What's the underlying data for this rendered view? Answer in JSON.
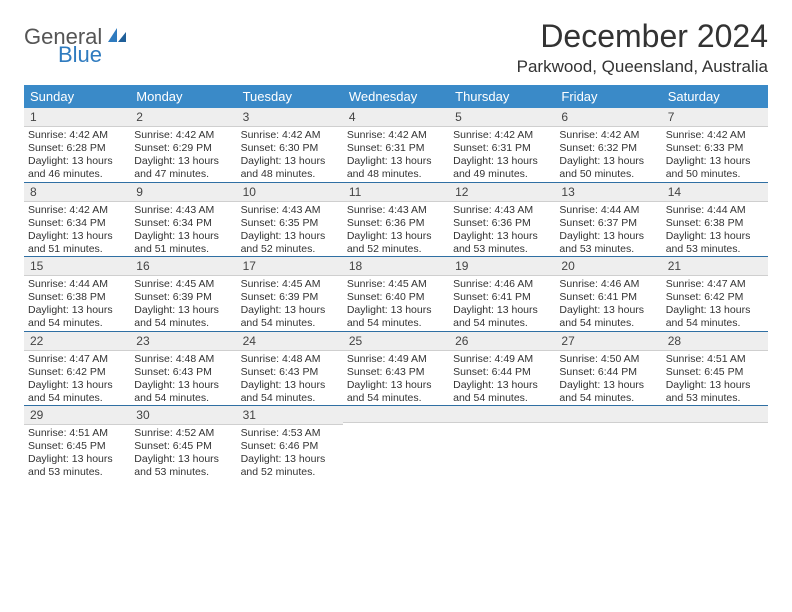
{
  "logo": {
    "part1": "General",
    "part2": "Blue",
    "icon_color": "#2f7bbf"
  },
  "title": "December 2024",
  "location": "Parkwood, Queensland, Australia",
  "colors": {
    "header_bg": "#3a8ac8",
    "header_text": "#ffffff",
    "daynum_bg": "#eeeeee",
    "rule": "#2f6fa3",
    "text": "#333333"
  },
  "fonts": {
    "title_size": 32,
    "location_size": 17,
    "header_size": 13,
    "cell_size": 10.5
  },
  "weekdays": [
    "Sunday",
    "Monday",
    "Tuesday",
    "Wednesday",
    "Thursday",
    "Friday",
    "Saturday"
  ],
  "weeks": [
    [
      {
        "n": "1",
        "sunrise": "4:42 AM",
        "sunset": "6:28 PM",
        "dl": "13 hours and 46 minutes."
      },
      {
        "n": "2",
        "sunrise": "4:42 AM",
        "sunset": "6:29 PM",
        "dl": "13 hours and 47 minutes."
      },
      {
        "n": "3",
        "sunrise": "4:42 AM",
        "sunset": "6:30 PM",
        "dl": "13 hours and 48 minutes."
      },
      {
        "n": "4",
        "sunrise": "4:42 AM",
        "sunset": "6:31 PM",
        "dl": "13 hours and 48 minutes."
      },
      {
        "n": "5",
        "sunrise": "4:42 AM",
        "sunset": "6:31 PM",
        "dl": "13 hours and 49 minutes."
      },
      {
        "n": "6",
        "sunrise": "4:42 AM",
        "sunset": "6:32 PM",
        "dl": "13 hours and 50 minutes."
      },
      {
        "n": "7",
        "sunrise": "4:42 AM",
        "sunset": "6:33 PM",
        "dl": "13 hours and 50 minutes."
      }
    ],
    [
      {
        "n": "8",
        "sunrise": "4:42 AM",
        "sunset": "6:34 PM",
        "dl": "13 hours and 51 minutes."
      },
      {
        "n": "9",
        "sunrise": "4:43 AM",
        "sunset": "6:34 PM",
        "dl": "13 hours and 51 minutes."
      },
      {
        "n": "10",
        "sunrise": "4:43 AM",
        "sunset": "6:35 PM",
        "dl": "13 hours and 52 minutes."
      },
      {
        "n": "11",
        "sunrise": "4:43 AM",
        "sunset": "6:36 PM",
        "dl": "13 hours and 52 minutes."
      },
      {
        "n": "12",
        "sunrise": "4:43 AM",
        "sunset": "6:36 PM",
        "dl": "13 hours and 53 minutes."
      },
      {
        "n": "13",
        "sunrise": "4:44 AM",
        "sunset": "6:37 PM",
        "dl": "13 hours and 53 minutes."
      },
      {
        "n": "14",
        "sunrise": "4:44 AM",
        "sunset": "6:38 PM",
        "dl": "13 hours and 53 minutes."
      }
    ],
    [
      {
        "n": "15",
        "sunrise": "4:44 AM",
        "sunset": "6:38 PM",
        "dl": "13 hours and 54 minutes."
      },
      {
        "n": "16",
        "sunrise": "4:45 AM",
        "sunset": "6:39 PM",
        "dl": "13 hours and 54 minutes."
      },
      {
        "n": "17",
        "sunrise": "4:45 AM",
        "sunset": "6:39 PM",
        "dl": "13 hours and 54 minutes."
      },
      {
        "n": "18",
        "sunrise": "4:45 AM",
        "sunset": "6:40 PM",
        "dl": "13 hours and 54 minutes."
      },
      {
        "n": "19",
        "sunrise": "4:46 AM",
        "sunset": "6:41 PM",
        "dl": "13 hours and 54 minutes."
      },
      {
        "n": "20",
        "sunrise": "4:46 AM",
        "sunset": "6:41 PM",
        "dl": "13 hours and 54 minutes."
      },
      {
        "n": "21",
        "sunrise": "4:47 AM",
        "sunset": "6:42 PM",
        "dl": "13 hours and 54 minutes."
      }
    ],
    [
      {
        "n": "22",
        "sunrise": "4:47 AM",
        "sunset": "6:42 PM",
        "dl": "13 hours and 54 minutes."
      },
      {
        "n": "23",
        "sunrise": "4:48 AM",
        "sunset": "6:43 PM",
        "dl": "13 hours and 54 minutes."
      },
      {
        "n": "24",
        "sunrise": "4:48 AM",
        "sunset": "6:43 PM",
        "dl": "13 hours and 54 minutes."
      },
      {
        "n": "25",
        "sunrise": "4:49 AM",
        "sunset": "6:43 PM",
        "dl": "13 hours and 54 minutes."
      },
      {
        "n": "26",
        "sunrise": "4:49 AM",
        "sunset": "6:44 PM",
        "dl": "13 hours and 54 minutes."
      },
      {
        "n": "27",
        "sunrise": "4:50 AM",
        "sunset": "6:44 PM",
        "dl": "13 hours and 54 minutes."
      },
      {
        "n": "28",
        "sunrise": "4:51 AM",
        "sunset": "6:45 PM",
        "dl": "13 hours and 53 minutes."
      }
    ],
    [
      {
        "n": "29",
        "sunrise": "4:51 AM",
        "sunset": "6:45 PM",
        "dl": "13 hours and 53 minutes."
      },
      {
        "n": "30",
        "sunrise": "4:52 AM",
        "sunset": "6:45 PM",
        "dl": "13 hours and 53 minutes."
      },
      {
        "n": "31",
        "sunrise": "4:53 AM",
        "sunset": "6:46 PM",
        "dl": "13 hours and 52 minutes."
      },
      null,
      null,
      null,
      null
    ]
  ]
}
